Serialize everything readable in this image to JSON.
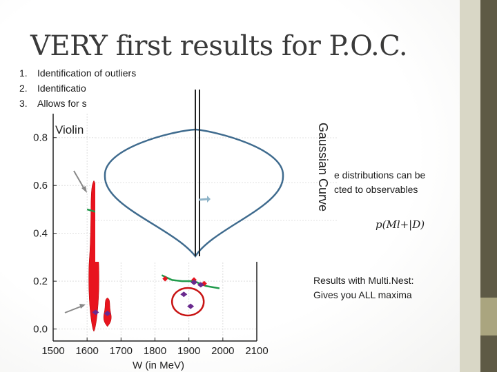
{
  "slide": {
    "title": "VERY first results for P.O.C.",
    "bullets": [
      {
        "num": "1.",
        "text": "Identification of outliers"
      },
      {
        "num": "2.",
        "text": "Identificatio"
      },
      {
        "num": "3.",
        "text": "Allows for s"
      }
    ],
    "overlay_label": "Violin",
    "gaussian_label": "Gaussian Curve",
    "note_distributions": [
      "e distributions can be",
      "cted to observables"
    ],
    "formula": "p(Ml+|D)",
    "note_multinest": [
      "Results with Multi.Nest:",
      "Gives you ALL maxima"
    ]
  },
  "colors": {
    "accent_dark": "#5e5a45",
    "accent_light": "#d9d7c6",
    "accent_mid": "#aaa57f",
    "violin_red": "#e8141e",
    "curve_blue": "#3f6b8e"
  },
  "chart_data": {
    "type": "scatter",
    "xlabel": "W (in MeV)",
    "ylabel": "",
    "xlim": [
      1500,
      2100
    ],
    "ylim": [
      -0.05,
      0.9
    ],
    "xticks": [
      1500,
      1600,
      1700,
      1800,
      1900,
      2000,
      2100
    ],
    "yticks": [
      0.0,
      0.2,
      0.4,
      0.6,
      0.8
    ],
    "grid": true,
    "violins": [
      {
        "x": 1620,
        "ymin": -0.01,
        "ymax": 0.62
      },
      {
        "x": 1660,
        "ymin": 0.01,
        "ymax": 0.13
      }
    ],
    "points_purple": [
      [
        1625,
        0.07
      ],
      [
        1660,
        0.065
      ],
      [
        1885,
        0.145
      ],
      [
        1905,
        0.095
      ],
      [
        1915,
        0.195
      ],
      [
        1935,
        0.185
      ]
    ],
    "points_red": [
      [
        1830,
        0.21
      ],
      [
        1915,
        0.205
      ],
      [
        1945,
        0.19
      ]
    ],
    "green_fits": [
      [
        [
          1600,
          0.5
        ],
        [
          1625,
          0.49
        ],
        [
          1640,
          0.455
        ]
      ],
      [
        [
          1820,
          0.225
        ],
        [
          1850,
          0.205
        ],
        [
          1880,
          0.2
        ],
        [
          1915,
          0.2
        ],
        [
          1950,
          0.18
        ],
        [
          1990,
          0.17
        ]
      ]
    ],
    "circled_points": [
      [
        1895,
        0.12
      ]
    ]
  }
}
